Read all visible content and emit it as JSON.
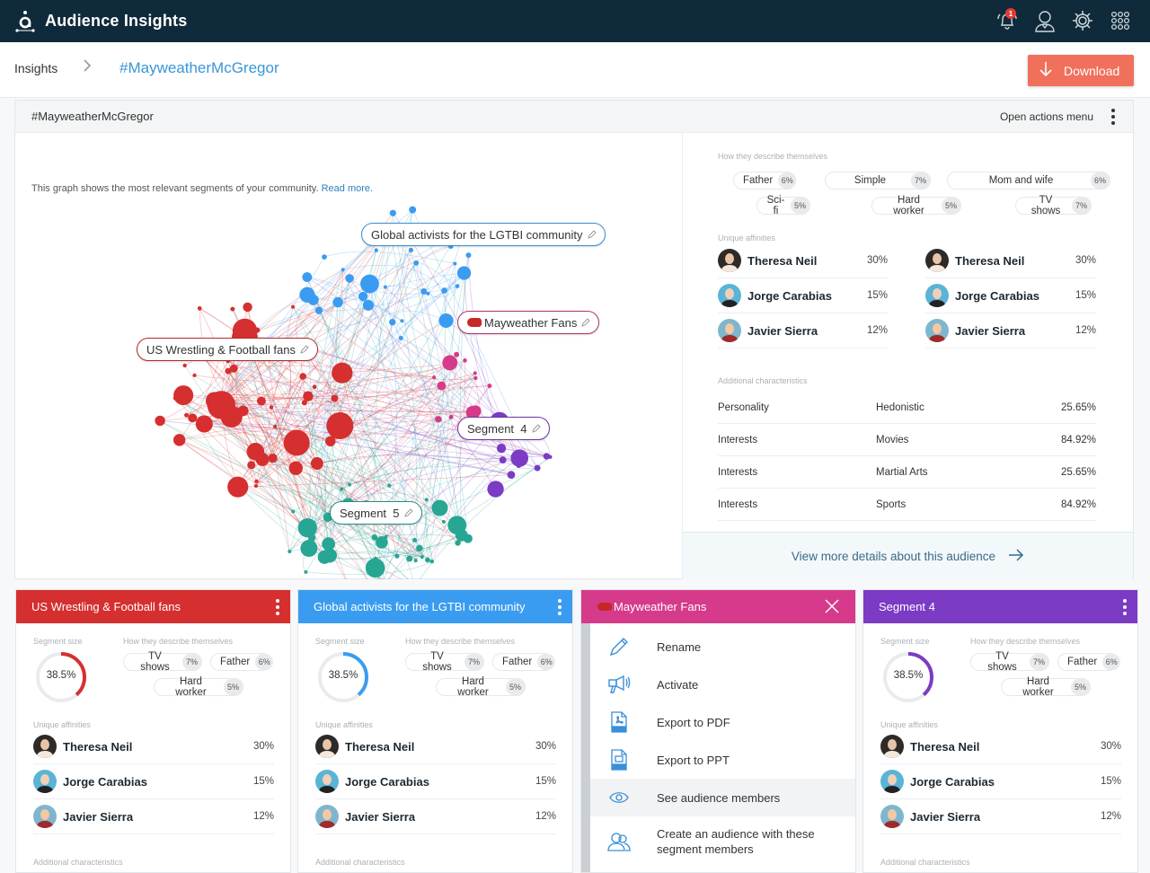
{
  "app": {
    "title": "Audience Insights",
    "notification_count": "1"
  },
  "topbar_icons": [
    "notifications-bell-icon",
    "user-profile-icon",
    "settings-gear-icon",
    "apps-grid-icon"
  ],
  "breadcrumb": {
    "root": "Insights",
    "separator": ">",
    "current": "#MayweatherMcGregor"
  },
  "download": {
    "label": "Download",
    "icon": "download-arrow-icon",
    "color": "#f0705b"
  },
  "main": {
    "title": "#MayweatherMcGregor",
    "actions_label": "Open actions menu",
    "graph_description": "This graph shows the most relevant segments of your community.",
    "read_more": "Read more.",
    "graph_labels": [
      {
        "label": "Global activists for the LGTBI community",
        "color": "#3a9cf0"
      },
      {
        "label": "Mayweather Fans",
        "color": "#d63a8a"
      },
      {
        "label": "US Wrestling & Football fans",
        "color": "#d62f2f"
      },
      {
        "label": "Segment  4",
        "color": "#7b3bc4"
      },
      {
        "label": "Segment  5",
        "color": "#27a693"
      }
    ],
    "describe": {
      "label": "How they describe themselves",
      "tags": [
        {
          "text": "Father",
          "pct": "6%"
        },
        {
          "text": "Simple",
          "pct": "7%"
        },
        {
          "text": "Mom and wife",
          "pct": "6%"
        },
        {
          "text": "Sci-fi",
          "pct": "5%"
        },
        {
          "text": "Hard worker",
          "pct": "5%"
        },
        {
          "text": "TV shows",
          "pct": "7%"
        }
      ]
    },
    "affinities": {
      "label": "Unique affinities",
      "left": [
        {
          "name": "Theresa Neil",
          "pct": "30%"
        },
        {
          "name": "Jorge Carabias",
          "pct": "15%"
        },
        {
          "name": "Javier Sierra",
          "pct": "12%"
        }
      ],
      "right": [
        {
          "name": "Theresa Neil",
          "pct": "30%"
        },
        {
          "name": "Jorge Carabias",
          "pct": "15%"
        },
        {
          "name": "Javier Sierra",
          "pct": "12%"
        }
      ]
    },
    "characteristics": {
      "label": "Additional characteristics",
      "rows": [
        {
          "category": "Personality",
          "value": "Hedonistic",
          "pct": "25.65%"
        },
        {
          "category": "Interests",
          "value": "Movies",
          "pct": "84.92%"
        },
        {
          "category": "Interests",
          "value": "Martial Arts",
          "pct": "25.65%"
        },
        {
          "category": "Interests",
          "value": "Sports",
          "pct": "84.92%"
        }
      ]
    },
    "view_more": "View more details about this audience"
  },
  "segments": [
    {
      "title": "US Wrestling & Football fans",
      "color": "#d62f2f",
      "size_label": "Segment size",
      "size": "38.5%",
      "describe_label": "How they describe themselves",
      "tags": [
        {
          "text": "TV shows",
          "pct": "7%"
        },
        {
          "text": "Father",
          "pct": "6%"
        },
        {
          "text": "Hard worker",
          "pct": "5%"
        }
      ],
      "affinities_label": "Unique affinities",
      "affinities": [
        {
          "name": "Theresa Neil",
          "pct": "30%"
        },
        {
          "name": "Jorge Carabias",
          "pct": "15%"
        },
        {
          "name": "Javier Sierra",
          "pct": "12%"
        }
      ],
      "characteristics_label": "Additional characteristics"
    },
    {
      "title": "Global activists for the LGTBI community",
      "color": "#3a9cf0",
      "size_label": "Segment size",
      "size": "38.5%",
      "describe_label": "How they describe themselves",
      "tags": [
        {
          "text": "TV shows",
          "pct": "7%"
        },
        {
          "text": "Father",
          "pct": "6%"
        },
        {
          "text": "Hard worker",
          "pct": "5%"
        }
      ],
      "affinities_label": "Unique affinities",
      "affinities": [
        {
          "name": "Theresa Neil",
          "pct": "30%"
        },
        {
          "name": "Jorge Carabias",
          "pct": "15%"
        },
        {
          "name": "Javier Sierra",
          "pct": "12%"
        }
      ],
      "characteristics_label": "Additional characteristics"
    },
    {
      "title": "Mayweather Fans",
      "color": "#d63a8a",
      "menu": [
        {
          "label": "Rename",
          "icon": "pencil-icon"
        },
        {
          "label": "Activate",
          "icon": "megaphone-icon"
        },
        {
          "label": "Export to PDF",
          "icon": "pdf-file-icon"
        },
        {
          "label": "Export to PPT",
          "icon": "ppt-file-icon"
        },
        {
          "label": "See audience members",
          "icon": "eye-icon"
        },
        {
          "label": "Create an audience with these segment members",
          "icon": "users-icon"
        }
      ]
    },
    {
      "title": "Segment 4",
      "color": "#7b3bc4",
      "size_label": "Segment size",
      "size": "38.5%",
      "describe_label": "How they describe themselves",
      "tags": [
        {
          "text": "TV shows",
          "pct": "7%"
        },
        {
          "text": "Father",
          "pct": "6%"
        },
        {
          "text": "Hard worker",
          "pct": "5%"
        }
      ],
      "affinities_label": "Unique affinities",
      "affinities": [
        {
          "name": "Theresa Neil",
          "pct": "30%"
        },
        {
          "name": "Jorge Carabias",
          "pct": "15%"
        },
        {
          "name": "Javier Sierra",
          "pct": "12%"
        }
      ],
      "characteristics_label": "Additional characteristics"
    }
  ]
}
